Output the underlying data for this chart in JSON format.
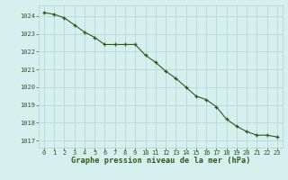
{
  "x": [
    0,
    1,
    2,
    3,
    4,
    5,
    6,
    7,
    8,
    9,
    10,
    11,
    12,
    13,
    14,
    15,
    16,
    17,
    18,
    19,
    20,
    21,
    22,
    23
  ],
  "y": [
    1024.2,
    1024.1,
    1023.9,
    1023.5,
    1023.1,
    1022.8,
    1022.4,
    1022.4,
    1022.4,
    1022.4,
    1021.8,
    1021.4,
    1020.9,
    1020.5,
    1020.0,
    1019.5,
    1019.3,
    1018.9,
    1018.2,
    1017.8,
    1017.5,
    1017.3,
    1017.3,
    1017.2
  ],
  "line_color": "#2d5a1b",
  "marker_color": "#2d5a1b",
  "bg_color": "#d6f0f0",
  "grid_color": "#b8d8d8",
  "ylabel_ticks": [
    1017,
    1018,
    1019,
    1020,
    1021,
    1022,
    1023,
    1024
  ],
  "xlabel_ticks": [
    0,
    1,
    2,
    3,
    4,
    5,
    6,
    7,
    8,
    9,
    10,
    11,
    12,
    13,
    14,
    15,
    16,
    17,
    18,
    19,
    20,
    21,
    22,
    23
  ],
  "xlabel_label": "Graphe pression niveau de la mer (hPa)",
  "ylim": [
    1016.6,
    1024.6
  ],
  "xlim": [
    -0.5,
    23.5
  ],
  "tick_fontsize": 5.0,
  "xlabel_fontsize": 6.2
}
